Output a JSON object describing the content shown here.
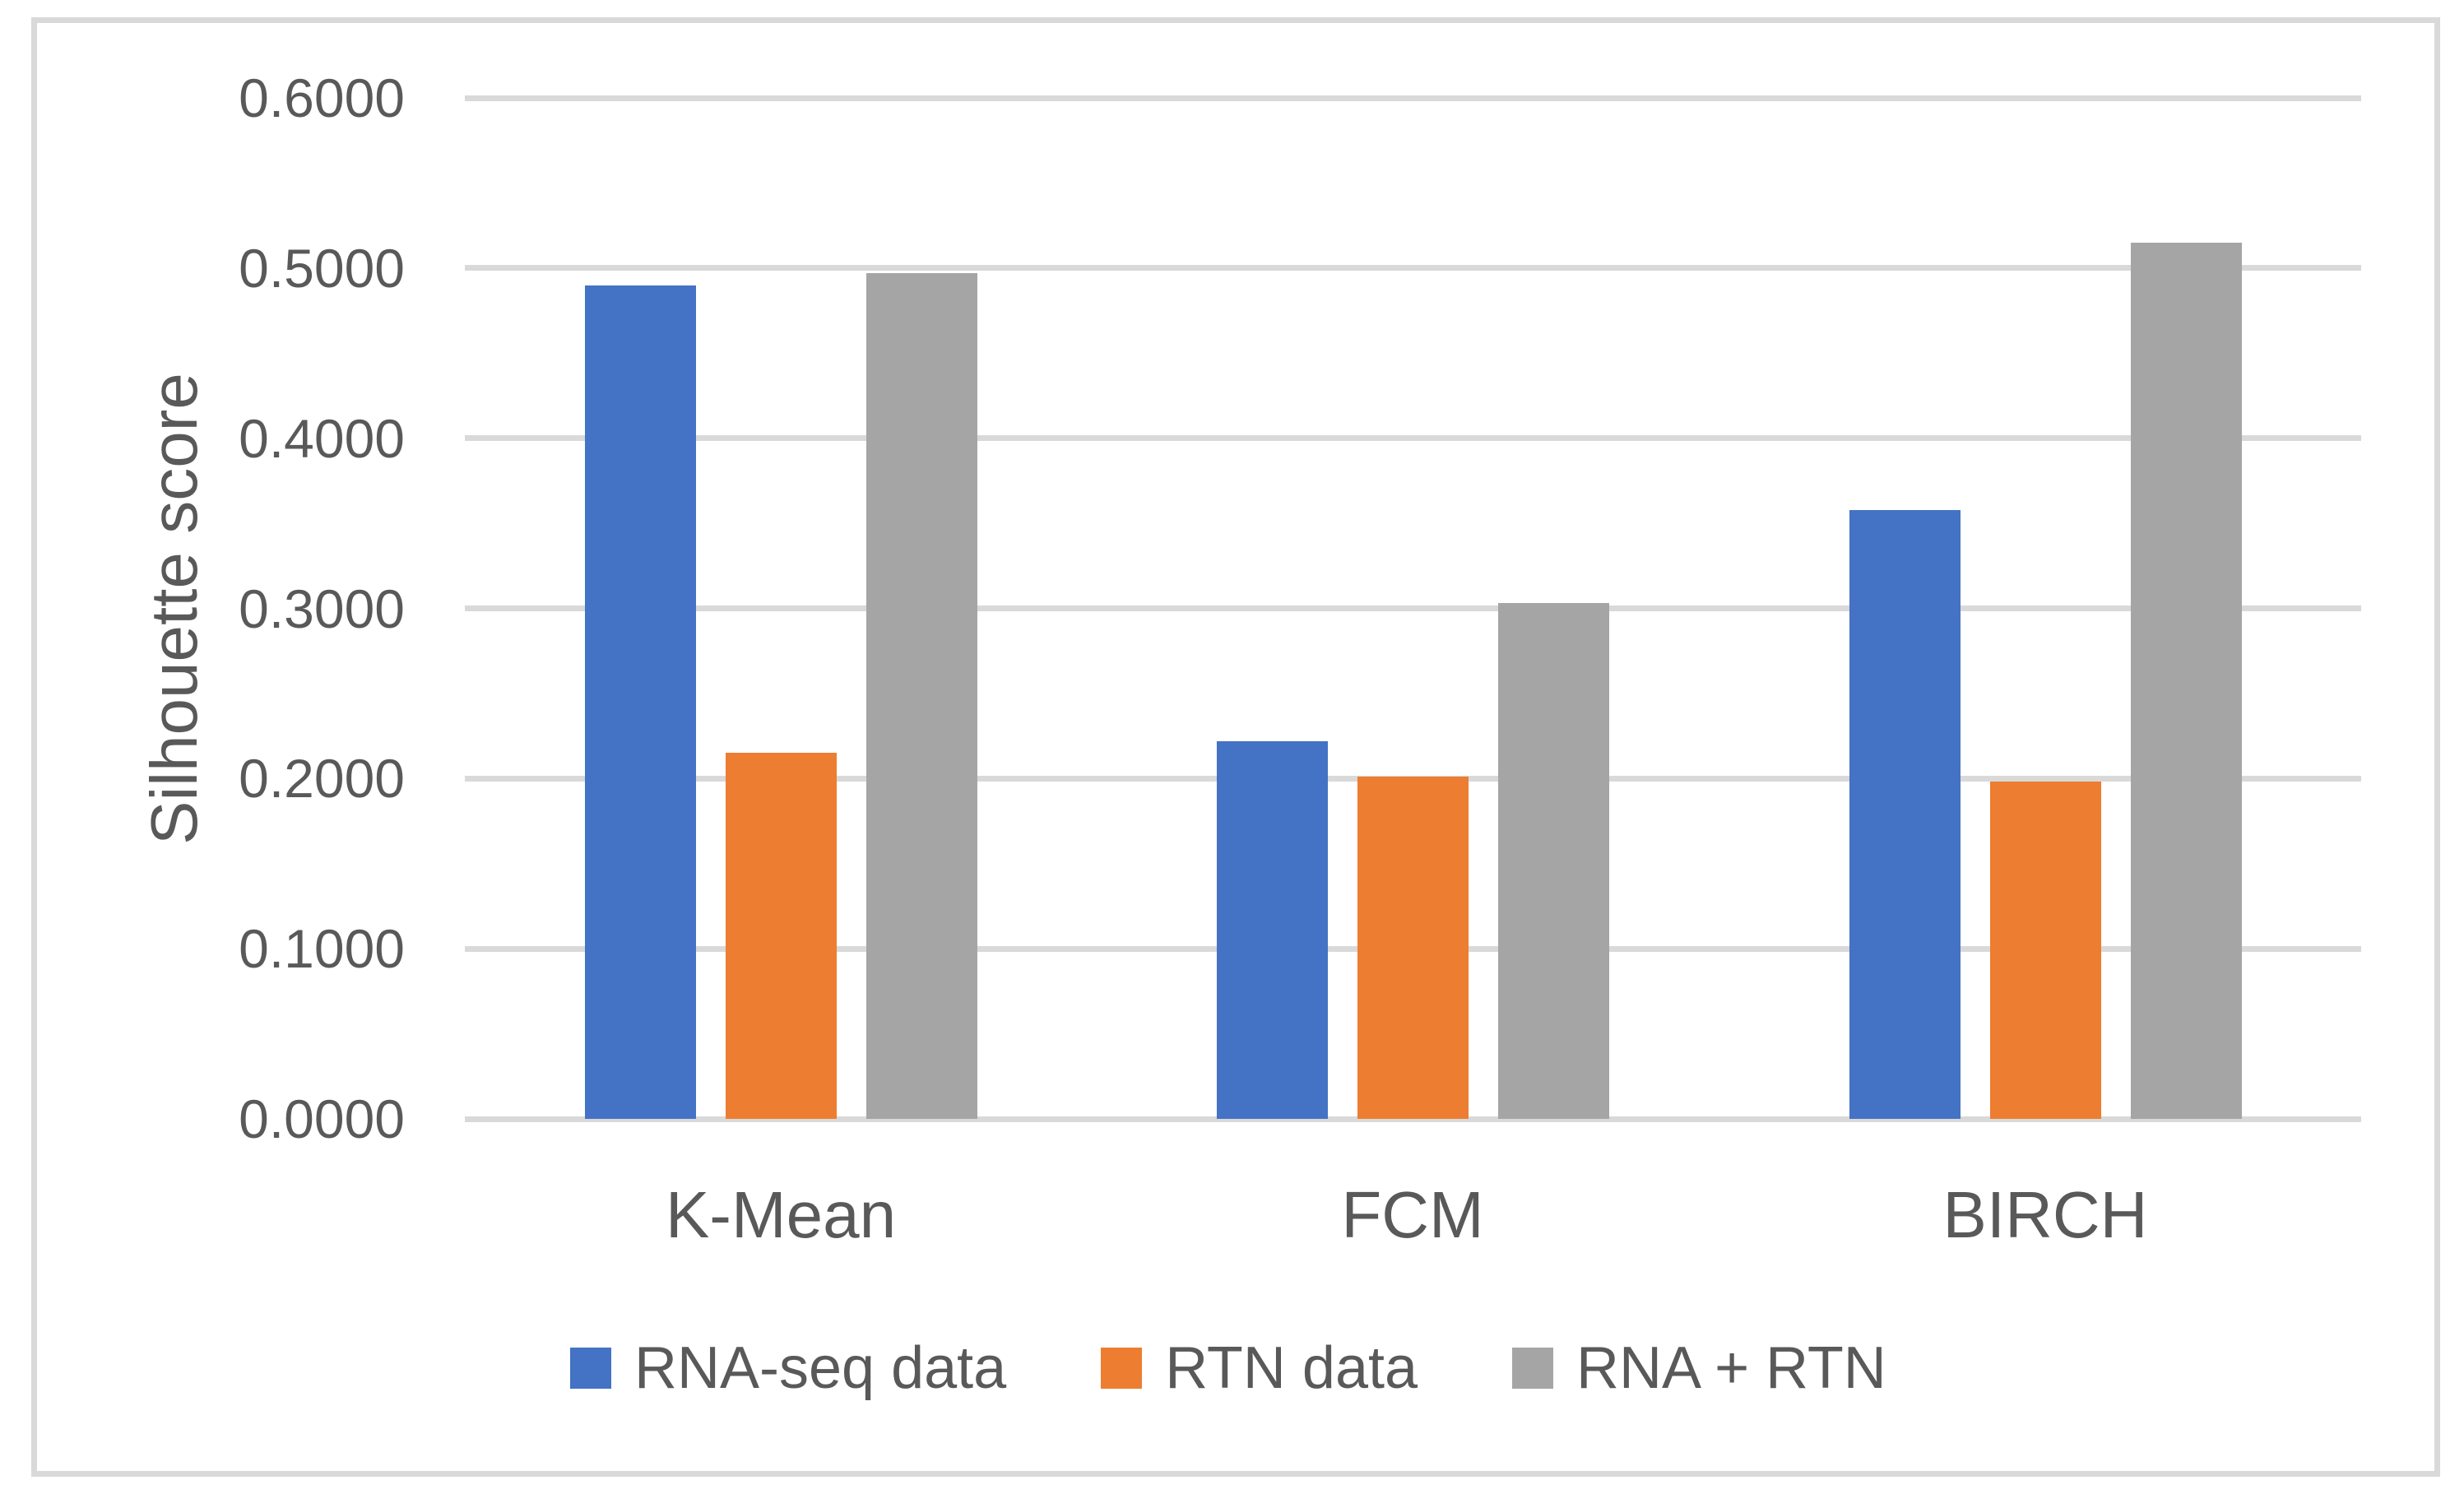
{
  "chart_data": {
    "type": "bar",
    "title": "",
    "categories": [
      "K-Mean",
      "FCM",
      "BIRCH"
    ],
    "series": [
      {
        "name": "RNA-seq data",
        "color": "#4472C4",
        "values": [
          0.49,
          0.222,
          0.358
        ]
      },
      {
        "name": "RTN data",
        "color": "#ED7D31",
        "values": [
          0.215,
          0.201,
          0.198
        ]
      },
      {
        "name": "RNA + RTN",
        "color": "#A5A5A5",
        "values": [
          0.497,
          0.303,
          0.515
        ]
      }
    ],
    "xlabel": "",
    "ylabel": "Silhouette score",
    "ylim": [
      0.0,
      0.6
    ],
    "ytick_step": 0.1,
    "ytick_labels": [
      "0.0000",
      "0.1000",
      "0.2000",
      "0.3000",
      "0.4000",
      "0.5000",
      "0.6000"
    ],
    "grid": true,
    "legend_position": "bottom",
    "colors": {
      "gridline": "#D9D9D9",
      "border": "#D9D9D9",
      "axis_text": "#595959",
      "background": "#FFFFFF"
    }
  }
}
